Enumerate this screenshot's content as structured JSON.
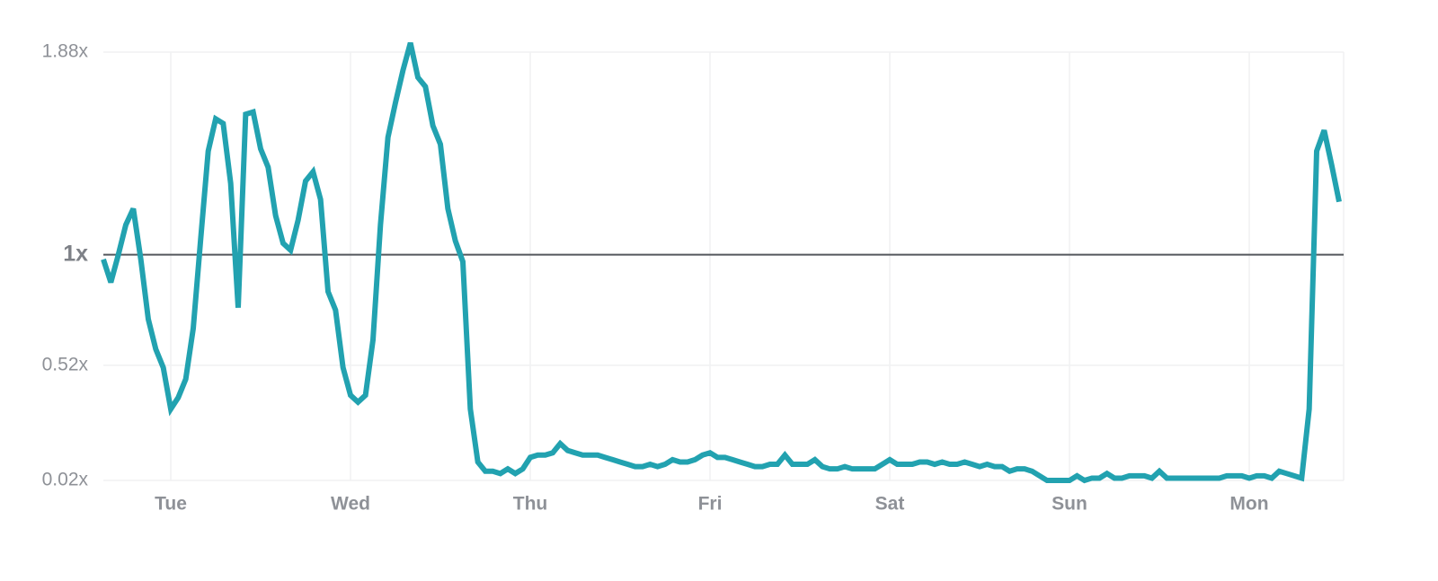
{
  "chart_data": {
    "type": "line",
    "x": [
      0,
      1,
      2,
      3,
      4,
      5,
      6,
      7,
      8,
      9,
      10,
      11,
      12,
      13,
      14,
      15,
      16,
      17,
      18,
      19,
      20,
      21,
      22,
      23,
      24,
      25,
      26,
      27,
      28,
      29,
      30,
      31,
      32,
      33,
      34,
      35,
      36,
      37,
      38,
      39,
      40,
      41,
      42,
      43,
      44,
      45,
      46,
      47,
      48,
      49,
      50,
      51,
      52,
      53,
      54,
      55,
      56,
      57,
      58,
      59,
      60,
      61,
      62,
      63,
      64,
      65,
      66,
      67,
      68,
      69,
      70,
      71,
      72,
      73,
      74,
      75,
      76,
      77,
      78,
      79,
      80,
      81,
      82,
      83,
      84,
      85,
      86,
      87,
      88,
      89,
      90,
      91,
      92,
      93,
      94,
      95,
      96,
      97,
      98,
      99,
      100,
      101,
      102,
      103,
      104,
      105,
      106,
      107,
      108,
      109,
      110,
      111,
      112,
      113,
      114,
      115,
      116,
      117,
      118,
      119,
      120,
      121,
      122,
      123,
      124,
      125,
      126,
      127,
      128,
      129,
      130,
      131,
      132,
      133,
      134,
      135,
      136,
      137,
      138,
      139,
      140,
      141,
      142,
      143,
      144,
      145,
      146,
      147,
      148,
      149,
      150,
      151,
      152,
      153,
      154,
      155,
      156,
      157,
      158,
      159,
      160,
      161,
      162,
      163,
      164,
      165
    ],
    "series": [
      {
        "color": "#22a2b0",
        "values": [
          0.98,
          0.88,
          1.0,
          1.13,
          1.2,
          0.98,
          0.72,
          0.59,
          0.51,
          0.33,
          0.38,
          0.46,
          0.68,
          1.07,
          1.45,
          1.59,
          1.57,
          1.31,
          0.77,
          1.61,
          1.62,
          1.46,
          1.38,
          1.17,
          1.05,
          1.02,
          1.15,
          1.32,
          1.36,
          1.24,
          0.84,
          0.76,
          0.51,
          0.39,
          0.36,
          0.39,
          0.63,
          1.13,
          1.51,
          1.66,
          1.8,
          1.92,
          1.77,
          1.73,
          1.56,
          1.48,
          1.2,
          1.06,
          0.97,
          0.33,
          0.1,
          0.06,
          0.06,
          0.05,
          0.07,
          0.05,
          0.07,
          0.12,
          0.13,
          0.13,
          0.14,
          0.18,
          0.15,
          0.14,
          0.13,
          0.13,
          0.13,
          0.12,
          0.11,
          0.1,
          0.09,
          0.08,
          0.08,
          0.09,
          0.08,
          0.09,
          0.11,
          0.1,
          0.1,
          0.11,
          0.13,
          0.14,
          0.12,
          0.12,
          0.11,
          0.1,
          0.09,
          0.08,
          0.08,
          0.09,
          0.09,
          0.13,
          0.09,
          0.09,
          0.09,
          0.11,
          0.08,
          0.07,
          0.07,
          0.08,
          0.07,
          0.07,
          0.07,
          0.07,
          0.09,
          0.11,
          0.09,
          0.09,
          0.09,
          0.1,
          0.1,
          0.09,
          0.1,
          0.09,
          0.09,
          0.1,
          0.09,
          0.08,
          0.09,
          0.08,
          0.08,
          0.06,
          0.07,
          0.07,
          0.06,
          0.04,
          0.02,
          0.02,
          0.02,
          0.02,
          0.04,
          0.02,
          0.03,
          0.03,
          0.05,
          0.03,
          0.03,
          0.04,
          0.04,
          0.04,
          0.03,
          0.06,
          0.03,
          0.03,
          0.03,
          0.03,
          0.03,
          0.03,
          0.03,
          0.03,
          0.04,
          0.04,
          0.04,
          0.03,
          0.04,
          0.04,
          0.03,
          0.06,
          0.05,
          0.04,
          0.03,
          0.33,
          1.45,
          1.54,
          1.39,
          1.23
        ]
      }
    ],
    "xlim": [
      0,
      165.6
    ],
    "xticks": [
      {
        "value": 9,
        "label": "Tue"
      },
      {
        "value": 33,
        "label": "Wed"
      },
      {
        "value": 57,
        "label": "Thu"
      },
      {
        "value": 81,
        "label": "Fri"
      },
      {
        "value": 105,
        "label": "Sat"
      },
      {
        "value": 129,
        "label": "Sun"
      },
      {
        "value": 153,
        "label": "Mon"
      }
    ],
    "ylim": [
      0.02,
      1.88
    ],
    "yticks": [
      {
        "value": 0.02,
        "label": "0.02x"
      },
      {
        "value": 0.52,
        "label": "0.52x"
      },
      {
        "value": 1,
        "label": "1x"
      },
      {
        "value": 1.88,
        "label": "1.88x"
      }
    ],
    "reference_line": 1,
    "grid": true
  }
}
